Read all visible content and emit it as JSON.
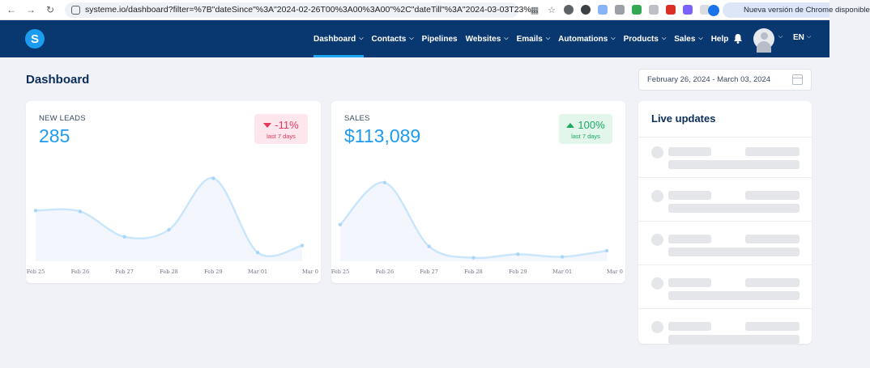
{
  "browser": {
    "url": "systeme.io/dashboard?filter=%7B\"dateSince\"%3A\"2024-02-26T00%3A00%3A00\"%2C\"dateTill\"%3A\"2024-03-03T23%...",
    "update_label": "Nueva versión de Chrome disponible"
  },
  "nav": {
    "logo_letter": "S",
    "items": [
      {
        "label": "Dashboard",
        "dropdown": true,
        "active": true
      },
      {
        "label": "Contacts",
        "dropdown": true
      },
      {
        "label": "Pipelines",
        "dropdown": false
      },
      {
        "label": "Websites",
        "dropdown": true
      },
      {
        "label": "Emails",
        "dropdown": true
      },
      {
        "label": "Automations",
        "dropdown": true
      },
      {
        "label": "Products",
        "dropdown": true
      },
      {
        "label": "Sales",
        "dropdown": true
      },
      {
        "label": "Help",
        "dropdown": false
      }
    ],
    "language": "EN"
  },
  "page": {
    "title": "Dashboard",
    "date_range": "February 26, 2024 - March 03, 2024"
  },
  "leads": {
    "label": "NEW LEADS",
    "value": "285",
    "change": "-11%",
    "period": "last 7 days"
  },
  "sales": {
    "label": "SALES",
    "value": "$113,089",
    "change": "100%",
    "period": "last 7 days"
  },
  "live": {
    "title": "Live updates",
    "placeholder_rows": 5
  },
  "chart_data": [
    {
      "type": "area",
      "categories": [
        "Feb 25",
        "Feb 26",
        "Feb 27",
        "Feb 28",
        "Feb 29",
        "Mar 01",
        "Mar 0"
      ],
      "values": [
        0.58,
        0.57,
        0.28,
        0.36,
        0.95,
        0.1,
        0.18
      ]
    },
    {
      "type": "area",
      "categories": [
        "Feb 25",
        "Feb 26",
        "Feb 27",
        "Feb 28",
        "Feb 29",
        "Mar 01",
        "Mar 0"
      ],
      "values": [
        0.42,
        0.9,
        0.17,
        0.04,
        0.08,
        0.05,
        0.12
      ]
    }
  ],
  "colors": {
    "nav_bg": "#093870",
    "accent": "#1e9bf0",
    "negative": "#e5365c",
    "positive": "#1aaa5f"
  }
}
